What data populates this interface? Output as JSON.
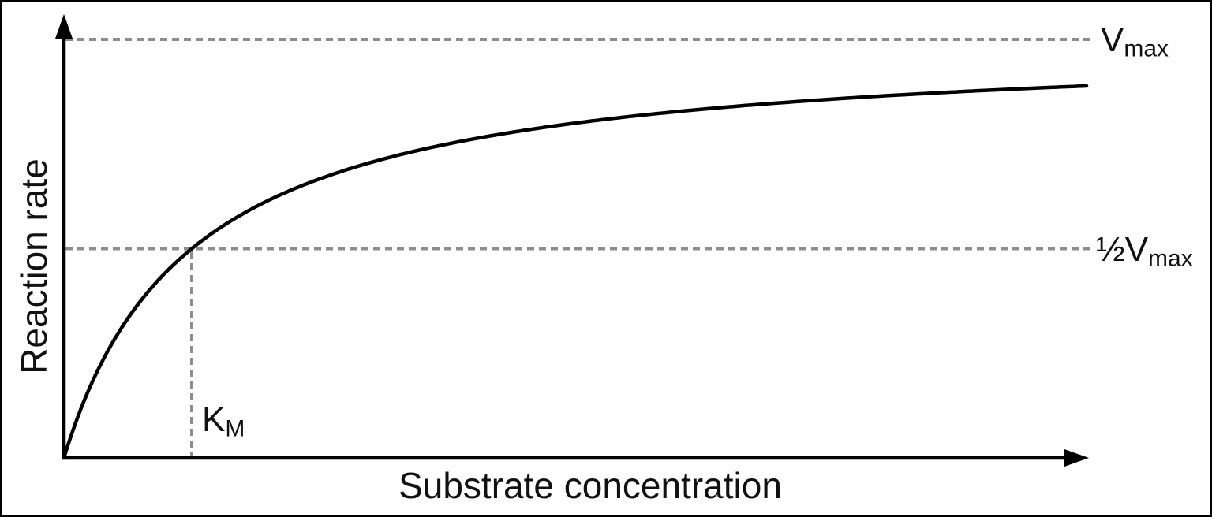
{
  "figure": {
    "description": "Michaelis–Menten enzyme kinetics saturation curve (schematic, no numeric ticks)"
  },
  "colors": {
    "curve": "#000000",
    "axis": "#000000",
    "guide": "#8c8c8c",
    "text": "#111111",
    "background": "#ffffff",
    "frame": "#000000"
  },
  "axes": {
    "x_label": "Substrate concentration",
    "y_label": "Reaction rate"
  },
  "annotations": {
    "vmax": {
      "main": "V",
      "sub": "max"
    },
    "half_vmax": {
      "main": "½V",
      "sub": "max"
    },
    "km": {
      "main": "K",
      "sub": "M"
    }
  },
  "chart_data": {
    "type": "line",
    "title": "",
    "xlabel": "Substrate concentration",
    "ylabel": "Reaction rate",
    "model": "michaelis_menten",
    "equation": "v = Vmax·[S] / (KM + [S])",
    "axis_ticks": "none (schematic)",
    "grid": false,
    "legend": false,
    "x_range_in_km_units": [
      0,
      8
    ],
    "y_range_in_vmax_units": [
      0,
      1.08
    ],
    "series": [
      {
        "name": "reaction rate",
        "formula": "y = x / (1 + x), x in KM units, y in Vmax units",
        "x_in_km_units": [
          0,
          0.5,
          1,
          2,
          3,
          4,
          5,
          6,
          7,
          8
        ],
        "y_in_vmax_units": [
          0,
          0.333,
          0.5,
          0.667,
          0.75,
          0.8,
          0.833,
          0.857,
          0.875,
          0.889
        ]
      }
    ],
    "guide_lines": [
      {
        "label": "Vmax",
        "type": "horizontal dashed",
        "y_in_vmax_units": 1
      },
      {
        "label": "½Vmax",
        "type": "horizontal dashed",
        "y_in_vmax_units": 0.5
      },
      {
        "label": "KM",
        "type": "vertical dashed",
        "x_in_km_units": 1
      }
    ],
    "key_points": [
      {
        "x": "KM",
        "y": "½Vmax",
        "note": "curve crosses half-maximal rate at substrate concentration equal to KM"
      }
    ]
  }
}
